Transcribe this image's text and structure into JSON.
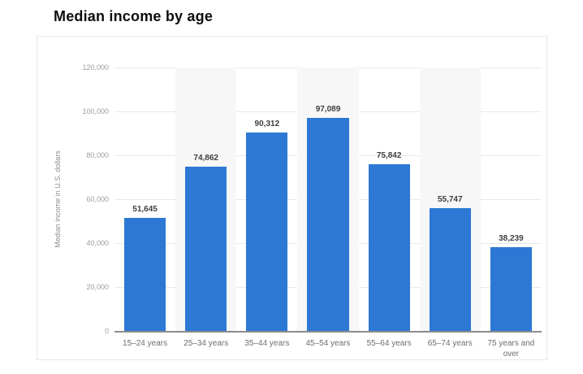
{
  "header": {
    "title": "Median income by age"
  },
  "chart_data": {
    "type": "bar",
    "title": "Median income by age",
    "categories": [
      "15–24 years",
      "25–34 years",
      "35–44 years",
      "45–54 years",
      "55–64 years",
      "65–74 years",
      "75 years and over"
    ],
    "values": [
      51645,
      74862,
      90312,
      97089,
      75842,
      55747,
      38239
    ],
    "value_labels": [
      "51,645",
      "74,862",
      "90,312",
      "97,089",
      "75,842",
      "55,747",
      "38,239"
    ],
    "xlabel": "",
    "ylabel": "Median income in U.S. dollars",
    "ylim": [
      0,
      120000
    ],
    "ytick_step": 20000,
    "ytick_labels": [
      "0",
      "20,000",
      "40,000",
      "60,000",
      "80,000",
      "100,000",
      "120,000"
    ],
    "grid": true,
    "legend": false,
    "bands": "alternating-even-columns",
    "colors": {
      "bar": "#2c78d4",
      "gridline": "#e9e9e9",
      "band": "#f7f7f7",
      "axis_line": "#8d8d8d",
      "value_label": "#3f3f3f",
      "x_tick": "#6e6e6e",
      "y_tick": "#9d9d9d",
      "y_title": "#8d8d8d",
      "title": "#0e0e0e"
    }
  }
}
